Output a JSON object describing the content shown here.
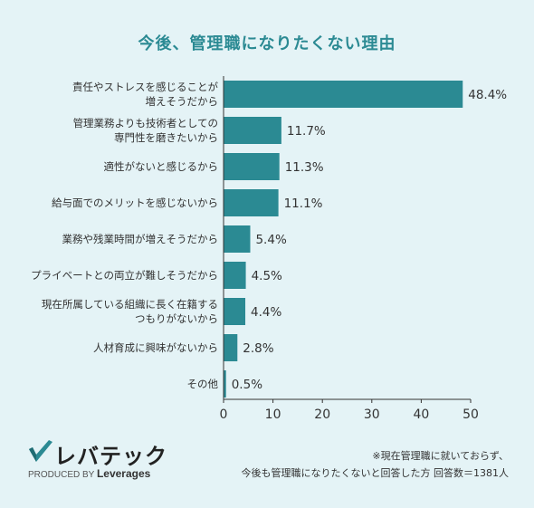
{
  "chart_data": {
    "type": "bar",
    "orientation": "horizontal",
    "title": "今後、管理職になりたくない理由",
    "categories": [
      [
        "責任やストレスを感じることが",
        "増えそうだから"
      ],
      [
        "管理業務よりも技術者としての",
        "専門性を磨きたいから"
      ],
      [
        "適性がないと感じるから"
      ],
      [
        "給与面でのメリットを感じないから"
      ],
      [
        "業務や残業時間が増えそうだから"
      ],
      [
        "プライベートとの両立が難しそうだから"
      ],
      [
        "現在所属している組織に長く在籍する",
        "つもりがないから"
      ],
      [
        "人材育成に興味がないから"
      ],
      [
        "その他"
      ]
    ],
    "values": [
      48.4,
      11.7,
      11.3,
      11.1,
      5.4,
      4.5,
      4.4,
      2.8,
      0.5
    ],
    "value_labels": [
      "48.4%",
      "11.7%",
      "11.3%",
      "11.1%",
      "5.4%",
      "4.5%",
      "4.4%",
      "2.8%",
      "0.5%"
    ],
    "xlim": [
      0,
      50
    ],
    "xticks": [
      "0",
      "10",
      "20",
      "30",
      "40",
      "50"
    ],
    "bar_color": "#2b8a93",
    "grid": false
  },
  "logo": {
    "name": "レバテック",
    "sub_prefix": "PRODUCED BY",
    "sub_brand": "Leverages"
  },
  "footnote": {
    "line1": "※現在管理職に就いておらず、",
    "line2": "今後も管理職になりたくないと回答した方 回答数＝1381人"
  }
}
